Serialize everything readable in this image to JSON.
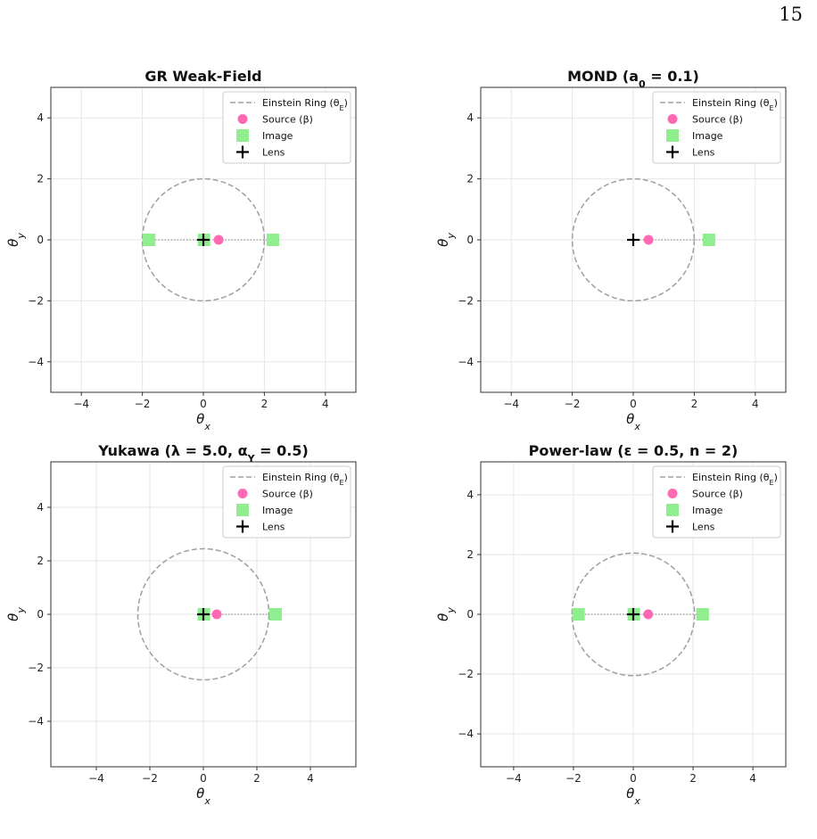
{
  "page": {
    "number": "15"
  },
  "legend_labels": {
    "ring": "Einstein Ring (θ_E)",
    "source": "Source (β)",
    "image": "Image",
    "lens": "Lens"
  },
  "colors": {
    "ring": "#a0a0a0",
    "source": "#ff69b4",
    "image": "#90ee90",
    "lens": "#000000",
    "grid": "#e6e6e6",
    "connector": "#999999"
  },
  "chart_data": [
    {
      "type": "scatter",
      "title": "GR Weak-Field",
      "xlabel": "θ_x",
      "ylabel": "θ_y",
      "xlim": [
        -5,
        5
      ],
      "ylim": [
        -5,
        5
      ],
      "xticks": [
        -4,
        -2,
        0,
        2,
        4
      ],
      "yticks": [
        -4,
        -2,
        0,
        2,
        4
      ],
      "grid": true,
      "legend_position": "upper-right",
      "einstein_radius": 2.0,
      "source": [
        0.5,
        0
      ],
      "images": [
        [
          2.28,
          0
        ],
        [
          -1.78,
          0
        ],
        [
          0.02,
          0
        ]
      ],
      "lens": [
        0,
        0
      ]
    },
    {
      "type": "scatter",
      "title": "MOND (a_0 = 0.1)",
      "xlabel": "θ_x",
      "ylabel": "θ_y",
      "xlim": [
        -5,
        5
      ],
      "ylim": [
        -5,
        5
      ],
      "xticks": [
        -4,
        -2,
        0,
        2,
        4
      ],
      "yticks": [
        -4,
        -2,
        0,
        2,
        4
      ],
      "grid": true,
      "legend_position": "upper-right",
      "einstein_radius": 2.0,
      "source": [
        0.5,
        0
      ],
      "images": [
        [
          2.48,
          0
        ]
      ],
      "lens": [
        0,
        0
      ]
    },
    {
      "type": "scatter",
      "title": "Yukawa (λ = 5.0, α_Y = 0.5)",
      "xlabel": "θ_x",
      "ylabel": "θ_y",
      "xlim": [
        -5.7,
        5.7
      ],
      "ylim": [
        -5.7,
        5.7
      ],
      "xticks": [
        -4,
        -2,
        0,
        2,
        4
      ],
      "yticks": [
        -4,
        -2,
        0,
        2,
        4
      ],
      "grid": true,
      "legend_position": "upper-right",
      "einstein_radius": 2.45,
      "source": [
        0.5,
        0
      ],
      "images": [
        [
          2.7,
          0
        ],
        [
          0.02,
          0
        ]
      ],
      "lens": [
        0,
        0
      ]
    },
    {
      "type": "scatter",
      "title": "Power-law (ε = 0.5, n = 2)",
      "xlabel": "θ_x",
      "ylabel": "θ_y",
      "xlim": [
        -5.1,
        5.1
      ],
      "ylim": [
        -5.1,
        5.1
      ],
      "xticks": [
        -4,
        -2,
        0,
        2,
        4
      ],
      "yticks": [
        -4,
        -2,
        0,
        2,
        4
      ],
      "grid": true,
      "legend_position": "upper-right",
      "einstein_radius": 2.05,
      "source": [
        0.5,
        0
      ],
      "images": [
        [
          2.32,
          0
        ],
        [
          -1.83,
          0
        ],
        [
          0.02,
          0
        ]
      ],
      "lens": [
        0,
        0
      ]
    }
  ]
}
